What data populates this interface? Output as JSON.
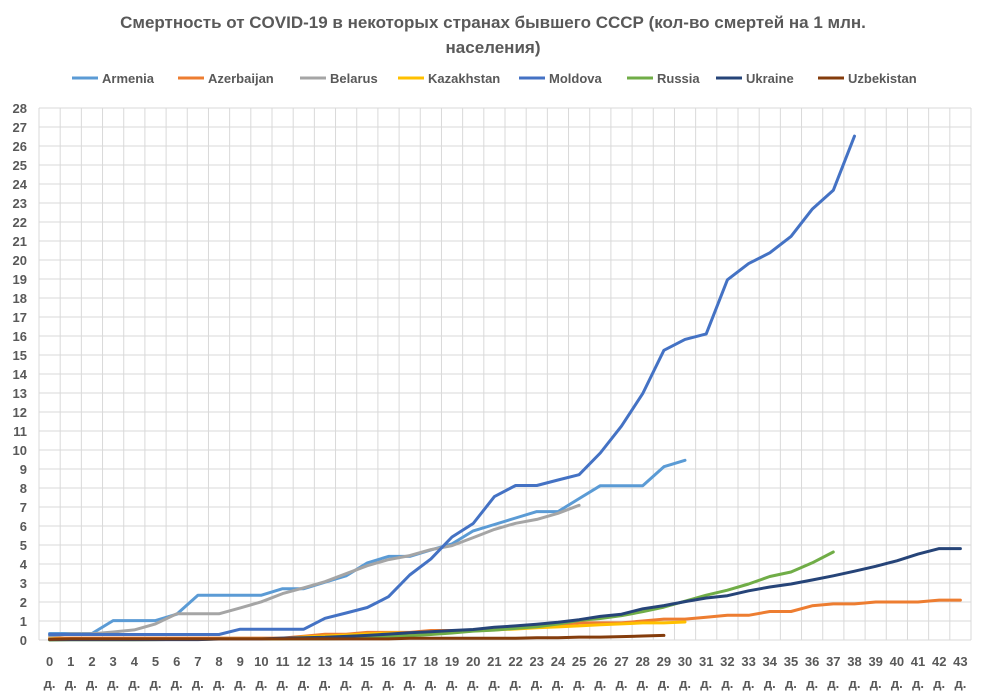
{
  "chart_data": {
    "type": "line",
    "title_line1": "Смертность от COVID-19 в некоторых странах бывшего СССР (кол-во смертей на 1 млн.",
    "title_line2": "населения)",
    "xlabel": "",
    "ylabel": "",
    "ylim": [
      0,
      28
    ],
    "xlim": [
      0,
      43
    ],
    "tick_suffix": "д.",
    "grid": true,
    "legend_position": "top",
    "x_ticks": [
      0,
      1,
      2,
      3,
      4,
      5,
      6,
      7,
      8,
      9,
      10,
      11,
      12,
      13,
      14,
      15,
      16,
      17,
      18,
      19,
      20,
      21,
      22,
      23,
      24,
      25,
      26,
      27,
      28,
      29,
      30,
      31,
      32,
      33,
      34,
      35,
      36,
      37,
      38,
      39,
      40,
      41,
      42,
      43
    ],
    "y_ticks": [
      0,
      1,
      2,
      3,
      4,
      5,
      6,
      7,
      8,
      9,
      10,
      11,
      12,
      13,
      14,
      15,
      16,
      17,
      18,
      19,
      20,
      21,
      22,
      23,
      24,
      25,
      26,
      27,
      28
    ],
    "series": [
      {
        "name": "Armenia",
        "color": "#5B9BD5",
        "values": [
          0.34,
          0.34,
          0.34,
          1.02,
          1.02,
          1.02,
          1.36,
          2.36,
          2.36,
          2.36,
          2.36,
          2.7,
          2.7,
          3.04,
          3.38,
          4.06,
          4.4,
          4.4,
          4.74,
          5.06,
          5.74,
          6.08,
          6.42,
          6.76,
          6.76,
          7.44,
          8.12,
          8.12,
          8.12,
          9.12,
          9.46
        ]
      },
      {
        "name": "Azerbaijan",
        "color": "#ED7D31",
        "values": [
          0.1,
          0.1,
          0.1,
          0.1,
          0.1,
          0.1,
          0.1,
          0.1,
          0.1,
          0.1,
          0.1,
          0.1,
          0.2,
          0.3,
          0.3,
          0.4,
          0.4,
          0.4,
          0.5,
          0.5,
          0.5,
          0.6,
          0.7,
          0.8,
          0.8,
          0.9,
          0.9,
          0.9,
          1.0,
          1.1,
          1.1,
          1.2,
          1.3,
          1.3,
          1.5,
          1.5,
          1.8,
          1.9,
          1.9,
          2.0,
          2.0,
          2.0,
          2.1,
          2.1
        ]
      },
      {
        "name": "Belarus",
        "color": "#A5A5A5",
        "values": [
          0.21,
          0.32,
          0.32,
          0.42,
          0.53,
          0.85,
          1.38,
          1.38,
          1.38,
          1.69,
          2.01,
          2.44,
          2.75,
          3.07,
          3.49,
          3.91,
          4.23,
          4.44,
          4.76,
          4.97,
          5.39,
          5.82,
          6.14,
          6.35,
          6.67,
          7.09
        ]
      },
      {
        "name": "Kazakhstan",
        "color": "#FFC000",
        "values": [
          0.05,
          0.05,
          0.05,
          0.05,
          0.05,
          0.05,
          0.05,
          0.05,
          0.05,
          0.05,
          0.05,
          0.05,
          0.16,
          0.21,
          0.26,
          0.32,
          0.37,
          0.37,
          0.37,
          0.42,
          0.48,
          0.53,
          0.58,
          0.64,
          0.69,
          0.74,
          0.8,
          0.85,
          0.9,
          0.9,
          0.95
        ]
      },
      {
        "name": "Moldova",
        "color": "#4472C4",
        "values": [
          0.29,
          0.29,
          0.29,
          0.29,
          0.29,
          0.29,
          0.29,
          0.29,
          0.29,
          0.57,
          0.57,
          0.57,
          0.57,
          1.14,
          1.42,
          1.71,
          2.28,
          3.42,
          4.27,
          5.42,
          6.13,
          7.55,
          8.13,
          8.13,
          8.42,
          8.7,
          9.84,
          11.26,
          12.97,
          15.25,
          15.82,
          16.11,
          18.96,
          19.81,
          20.38,
          21.24,
          22.67,
          23.67,
          26.52
        ]
      },
      {
        "name": "Russia",
        "color": "#70AD47",
        "values": [
          0.0,
          0.01,
          0.01,
          0.01,
          0.01,
          0.02,
          0.03,
          0.03,
          0.06,
          0.06,
          0.06,
          0.06,
          0.06,
          0.06,
          0.08,
          0.12,
          0.19,
          0.22,
          0.29,
          0.37,
          0.47,
          0.52,
          0.61,
          0.7,
          0.84,
          1.03,
          1.13,
          1.28,
          1.49,
          1.73,
          2.04,
          2.36,
          2.62,
          2.95,
          3.34,
          3.58,
          4.06,
          4.63
        ]
      },
      {
        "name": "Ukraine",
        "color": "#264478",
        "values": [
          0.02,
          0.02,
          0.02,
          0.02,
          0.02,
          0.02,
          0.02,
          0.02,
          0.05,
          0.05,
          0.05,
          0.1,
          0.12,
          0.14,
          0.19,
          0.24,
          0.31,
          0.38,
          0.43,
          0.5,
          0.55,
          0.67,
          0.74,
          0.83,
          0.93,
          1.07,
          1.24,
          1.36,
          1.64,
          1.81,
          2.02,
          2.21,
          2.33,
          2.59,
          2.79,
          2.95,
          3.16,
          3.38,
          3.62,
          3.88,
          4.17,
          4.52,
          4.81,
          4.81
        ]
      },
      {
        "name": "Uzbekistan",
        "color": "#843C0C",
        "values": [
          0.03,
          0.06,
          0.06,
          0.06,
          0.06,
          0.06,
          0.06,
          0.06,
          0.06,
          0.06,
          0.06,
          0.06,
          0.06,
          0.06,
          0.06,
          0.06,
          0.06,
          0.09,
          0.09,
          0.09,
          0.09,
          0.09,
          0.09,
          0.12,
          0.12,
          0.15,
          0.15,
          0.18,
          0.21,
          0.24
        ]
      }
    ]
  }
}
